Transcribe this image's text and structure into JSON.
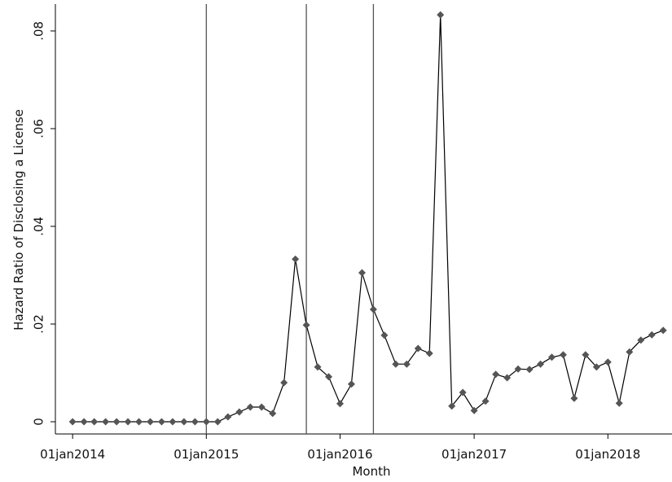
{
  "chart_data": {
    "type": "line",
    "x_label": "Month",
    "y_label": "Hazard Ratio of Disclosing a License",
    "x": [
      "2014-01-01",
      "2014-02-01",
      "2014-03-01",
      "2014-04-01",
      "2014-05-01",
      "2014-06-01",
      "2014-07-01",
      "2014-08-01",
      "2014-09-01",
      "2014-10-01",
      "2014-11-01",
      "2014-12-01",
      "2015-01-01",
      "2015-02-01",
      "2015-03-01",
      "2015-04-01",
      "2015-05-01",
      "2015-06-01",
      "2015-07-01",
      "2015-08-01",
      "2015-09-01",
      "2015-10-01",
      "2015-11-01",
      "2015-12-01",
      "2016-01-01",
      "2016-02-01",
      "2016-03-01",
      "2016-04-01",
      "2016-05-01",
      "2016-06-01",
      "2016-07-01",
      "2016-08-01",
      "2016-09-01",
      "2016-10-01",
      "2016-11-01",
      "2016-12-01",
      "2017-01-01",
      "2017-02-01",
      "2017-03-01",
      "2017-04-01",
      "2017-05-01",
      "2017-06-01",
      "2017-07-01",
      "2017-08-01",
      "2017-09-01",
      "2017-10-01",
      "2017-11-01",
      "2017-12-01",
      "2018-01-01",
      "2018-02-01",
      "2018-03-01",
      "2018-04-01",
      "2018-05-01",
      "2018-06-01"
    ],
    "values": [
      0,
      0,
      0,
      0,
      0,
      0,
      0,
      0,
      0,
      0,
      0,
      0,
      0,
      0,
      0.001,
      0.002,
      0.003,
      0.003,
      0.0017,
      0.008,
      0.0333,
      0.0198,
      0.0112,
      0.0092,
      0.0037,
      0.0077,
      0.0305,
      0.023,
      0.0177,
      0.0118,
      0.0118,
      0.015,
      0.014,
      0.0833,
      0.0032,
      0.006,
      0.0023,
      0.0042,
      0.0097,
      0.009,
      0.0108,
      0.0107,
      0.0118,
      0.0132,
      0.0137,
      0.0048,
      0.0137,
      0.0112,
      0.0122,
      0.0038,
      0.0143,
      0.0167,
      0.0178,
      0.0187
    ],
    "line_color": "#000000",
    "marker_color": "#555555",
    "xlines": [
      "2015-01-01",
      "2015-10-01",
      "2016-04-01"
    ],
    "xlines_color": "#555555",
    "xlim": [
      "2013-11-15",
      "2018-06-25"
    ],
    "xticks": [
      {
        "value": "2014-01-01",
        "label": "01jan2014"
      },
      {
        "value": "2015-01-01",
        "label": "01jan2015"
      },
      {
        "value": "2016-01-01",
        "label": "01jan2016"
      },
      {
        "value": "2017-01-01",
        "label": "01jan2017"
      },
      {
        "value": "2018-01-01",
        "label": "01jan2018"
      }
    ],
    "ylim": [
      -0.0025,
      0.0855
    ],
    "yticks": [
      0,
      {
        "value": 0.02,
        "label": ".02"
      },
      {
        "value": 0.04,
        "label": ".04"
      },
      {
        "value": 0.06,
        "label": ".06"
      },
      {
        "value": 0.08,
        "label": ".08"
      }
    ]
  }
}
